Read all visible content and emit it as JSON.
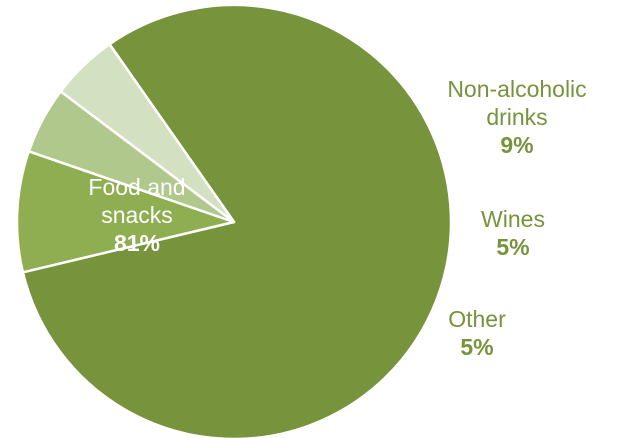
{
  "chart_data": {
    "type": "pie",
    "slices": [
      {
        "label": "Food and snacks",
        "label_lines": [
          "Food and",
          "snacks"
        ],
        "value": 81,
        "value_text": "81%",
        "color": "#77933c"
      },
      {
        "label": "Non-alcoholic drinks",
        "label_lines": [
          "Non-alcoholic",
          "drinks"
        ],
        "value": 9,
        "value_text": "9%",
        "color": "#8fae52"
      },
      {
        "label": "Wines",
        "label_lines": [
          "Wines"
        ],
        "value": 5,
        "value_text": "5%",
        "color": "#b0c88c"
      },
      {
        "label": "Other",
        "label_lines": [
          "Other"
        ],
        "value": 5,
        "value_text": "5%",
        "color": "#d4e0c2"
      }
    ],
    "inside_label_color": "#ffffff",
    "outside_label_color": "#77933c"
  }
}
